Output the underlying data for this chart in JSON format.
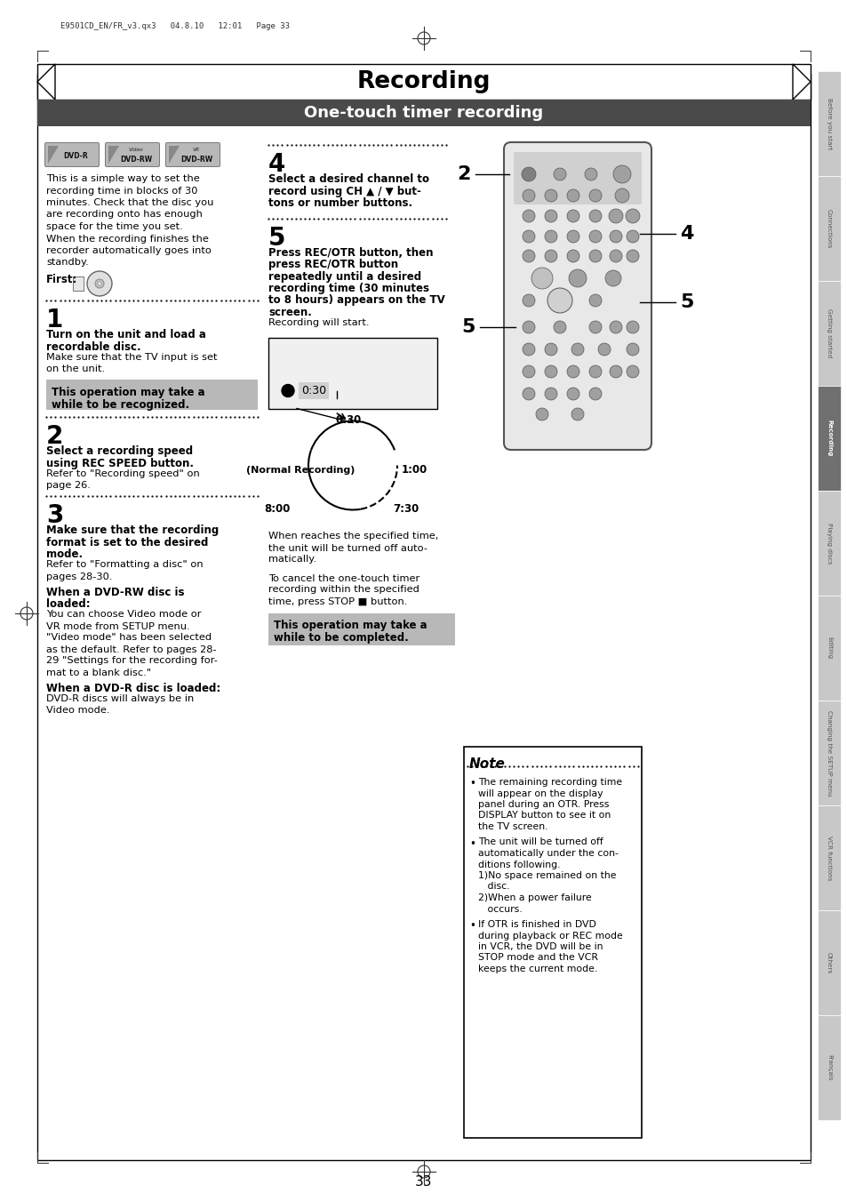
{
  "page_bg": "#ffffff",
  "header_text": "Recording",
  "subheader_text": "One-touch timer recording",
  "subheader_bg": "#4a4a4a",
  "subheader_fg": "#ffffff",
  "tab_labels": [
    "Before you start",
    "Connections",
    "Getting started",
    "Recording",
    "Playing discs",
    "Editing",
    "Changing the SETUP menu",
    "VCR functions",
    "Others",
    "Français"
  ],
  "tab_active": "Recording",
  "page_number": "33",
  "top_meta": "E9501CD_EN/FR_v3.qx3   04.8.10   12:01   Page 33",
  "intro_text": [
    "This is a simple way to set the",
    "recording time in blocks of 30",
    "minutes. Check that the disc you",
    "are recording onto has enough",
    "space for the time you set.",
    "When the recording finishes the",
    "recorder automatically goes into",
    "standby."
  ],
  "first_label": "First:",
  "step1_num": "1",
  "step1_bold": [
    "Turn on the unit and load a",
    "recordable disc."
  ],
  "step1_normal": [
    "Make sure that the TV input is set",
    "on the unit."
  ],
  "step1_note": [
    "This operation may take a",
    "while to be recognized."
  ],
  "step2_num": "2",
  "step2_bold": [
    "Select a recording speed",
    "using REC SPEED button."
  ],
  "step2_normal": [
    "Refer to \"Recording speed\" on",
    "page 26."
  ],
  "step3_num": "3",
  "step3_bold": [
    "Make sure that the recording",
    "format is set to the desired",
    "mode."
  ],
  "step3_normal": [
    "Refer to \"Formatting a disc\" on",
    "pages 28-30."
  ],
  "step3_sub1_bold": [
    "When a DVD-RW disc is",
    "loaded:"
  ],
  "step3_sub1_normal": [
    "You can choose Video mode or",
    "VR mode from SETUP menu.",
    "\"Video mode\" has been selected",
    "as the default. Refer to pages 28-",
    "29 \"Settings for the recording for-",
    "mat to a blank disc.\""
  ],
  "step3_sub2_bold": [
    "When a DVD-R disc is loaded:"
  ],
  "step3_sub2_normal": [
    "DVD-R discs will always be in",
    "Video mode."
  ],
  "step4_num": "4",
  "step4_bold": [
    "Select a desired channel to",
    "record using CH ▲ / ▼ but-",
    "tons or number buttons."
  ],
  "step5_num": "5",
  "step5_bold": [
    "Press REC/OTR button, then",
    "press REC/OTR button",
    "repeatedly until a desired",
    "recording time (30 minutes",
    "to 8 hours) appears on the TV",
    "screen."
  ],
  "step5_normal": [
    "Recording will start."
  ],
  "diagram_note1": [
    "When reaches the specified time,",
    "the unit will be turned off auto-",
    "matically."
  ],
  "diagram_cancel": [
    "To cancel the one-touch timer",
    "recording within the specified",
    "time, press STOP ■ button."
  ],
  "diagram_note2": [
    "This operation may take a",
    "while to be completed."
  ],
  "note_title": "Note",
  "note_bullet1": [
    "The remaining recording time",
    "will appear on the display",
    "panel during an OTR. Press",
    "DISPLAY button to see it on",
    "the TV screen."
  ],
  "note_bullet2": [
    "The unit will be turned off",
    "automatically under the con-",
    "ditions following.",
    "1)No space remained on the",
    "   disc.",
    "2)When a power failure",
    "   occurs."
  ],
  "note_bullet3": [
    "If OTR is finished in DVD",
    "during playback or REC mode",
    "in VCR, the DVD will be in",
    "STOP mode and the VCR",
    "keeps the current mode."
  ]
}
